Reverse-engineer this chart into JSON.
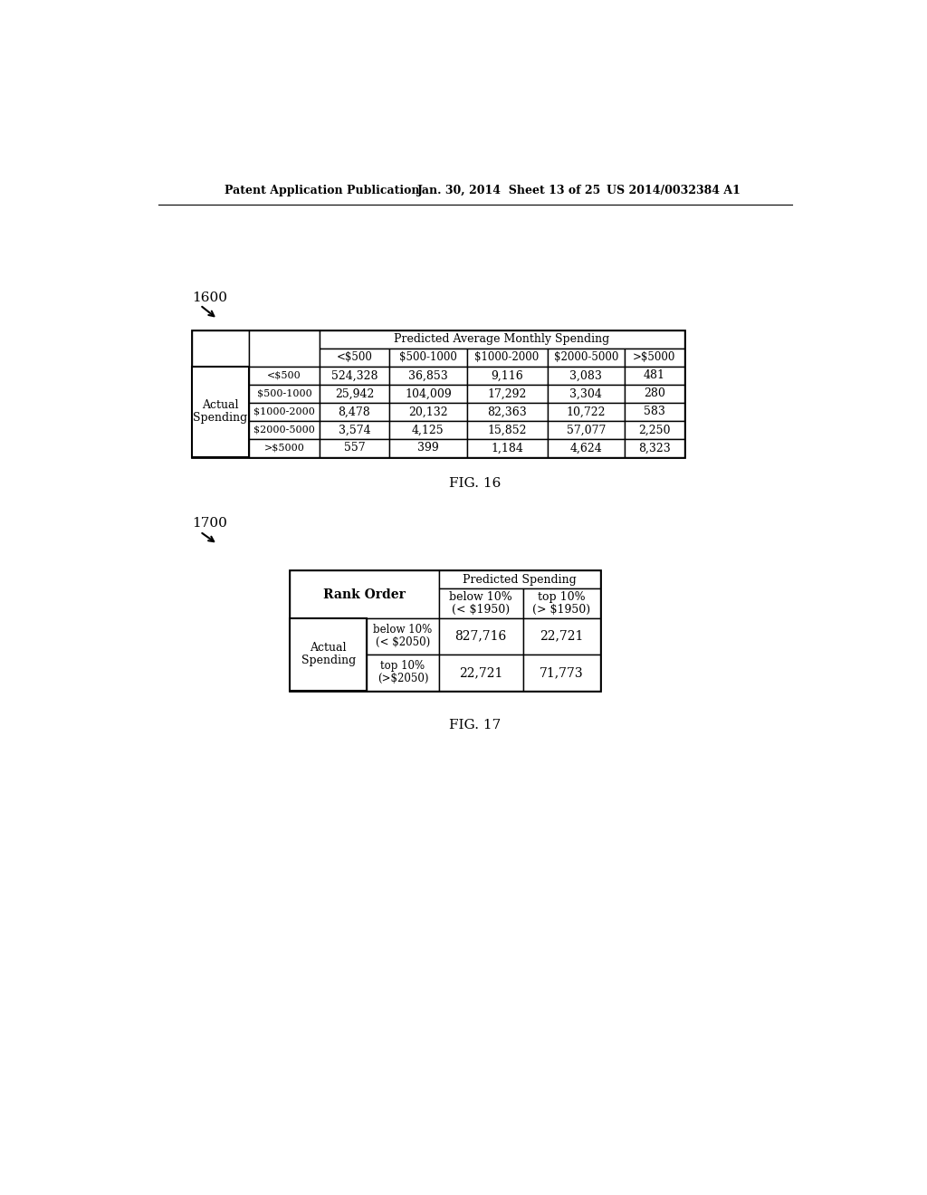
{
  "header_text_left": "Patent Application Publication",
  "header_text_mid": "Jan. 30, 2014  Sheet 13 of 25",
  "header_text_right": "US 2014/0032384 A1",
  "fig16_label": "1600",
  "fig16_caption": "FIG. 16",
  "fig17_label": "1700",
  "fig17_caption": "FIG. 17",
  "table1_header_span": "Predicted Average Monthly Spending",
  "table1_col_headers": [
    "<$500",
    "$500-1000",
    "$1000-2000",
    "$2000-5000",
    ">$5000"
  ],
  "table1_row_label1": "Actual",
  "table1_row_label2": "Spending",
  "table1_row_sub_labels": [
    "<$500",
    "$500-1000",
    "$1000-2000",
    "$2000-5000",
    ">$5000"
  ],
  "table1_data": [
    [
      "524,328",
      "36,853",
      "9,116",
      "3,083",
      "481"
    ],
    [
      "25,942",
      "104,009",
      "17,292",
      "3,304",
      "280"
    ],
    [
      "8,478",
      "20,132",
      "82,363",
      "10,722",
      "583"
    ],
    [
      "3,574",
      "4,125",
      "15,852",
      "57,077",
      "2,250"
    ],
    [
      "557",
      "399",
      "1,184",
      "4,624",
      "8,323"
    ]
  ],
  "table2_header_span": "Predicted Spending",
  "table2_rank_label": "Rank Order",
  "table2_col_header1_line1": "below 10%",
  "table2_col_header1_line2": "(< $1950)",
  "table2_col_header2_line1": "top 10%",
  "table2_col_header2_line2": "(> $1950)",
  "table2_row_label1": "Actual",
  "table2_row_label2": "Spending",
  "table2_sub1_line1": "below 10%",
  "table2_sub1_line2": "(< $2050)",
  "table2_sub2_line1": "top 10%",
  "table2_sub2_line2": "(>$2050)",
  "table2_data": [
    [
      "827,716",
      "22,721"
    ],
    [
      "22,721",
      "71,773"
    ]
  ]
}
